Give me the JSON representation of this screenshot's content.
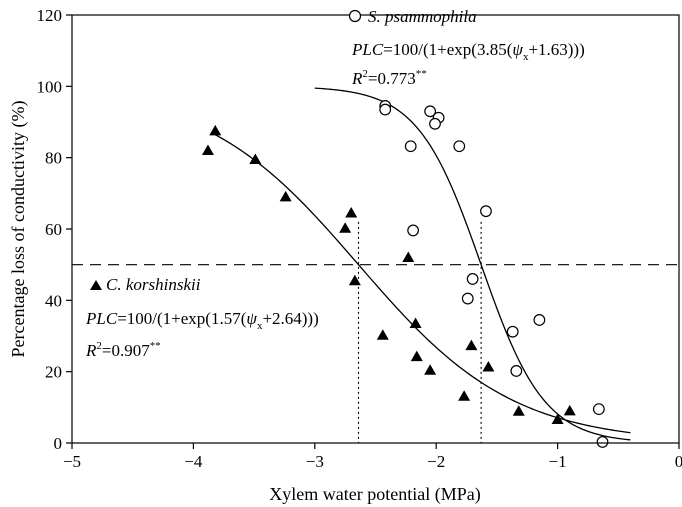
{
  "chart_data": {
    "type": "scatter",
    "xlabel": "Xylem water potential (MPa)",
    "ylabel": "Percentage loss of conductivity (%)",
    "xlim": [
      -5,
      0
    ],
    "ylim": [
      0,
      120
    ],
    "xticks": [
      "−5",
      "−4",
      "−3",
      "−2",
      "−1",
      "0"
    ],
    "yticks": [
      "0",
      "20",
      "40",
      "60",
      "80",
      "100",
      "120"
    ],
    "grid": false,
    "reference_line": {
      "y": 50,
      "style": "dashed"
    },
    "p50_markers": [
      -2.64,
      -1.63
    ],
    "series": [
      {
        "name": "S. psammophila",
        "marker": "open-circle",
        "equation": {
          "lhs": "PLC",
          "a": "=100/(1+exp(3.85(",
          "psi": "ψ",
          "sub": "x",
          "b": "+1.63)))"
        },
        "r2": {
          "label": "R",
          "sup": "2",
          "value": "=0.773",
          "sig": "**"
        },
        "fit": {
          "a": 3.85,
          "b": 1.63,
          "x_range": [
            -3.0,
            -0.4
          ]
        },
        "points": [
          {
            "x": -2.42,
            "y": 94.5
          },
          {
            "x": -2.42,
            "y": 93.5
          },
          {
            "x": -2.05,
            "y": 93
          },
          {
            "x": -1.98,
            "y": 91.2
          },
          {
            "x": -2.01,
            "y": 89.5
          },
          {
            "x": -2.21,
            "y": 83.2
          },
          {
            "x": -1.81,
            "y": 83.2
          },
          {
            "x": -2.19,
            "y": 59.6
          },
          {
            "x": -1.59,
            "y": 65
          },
          {
            "x": -1.7,
            "y": 46
          },
          {
            "x": -1.74,
            "y": 40.5
          },
          {
            "x": -1.15,
            "y": 34.5
          },
          {
            "x": -1.37,
            "y": 31.2
          },
          {
            "x": -1.34,
            "y": 20.2
          },
          {
            "x": -0.66,
            "y": 9.5
          },
          {
            "x": -0.63,
            "y": 0.3
          }
        ]
      },
      {
        "name": "C. korshinskii",
        "marker": "filled-triangle",
        "equation": {
          "lhs": "PLC",
          "a": "=100/(1+exp(1.57(",
          "psi": "ψ",
          "sub": "x",
          "b": "+2.64)))"
        },
        "r2": {
          "label": "R",
          "sup": "2",
          "value": "=0.907",
          "sig": "**"
        },
        "fit": {
          "a": 1.57,
          "b": 2.64,
          "x_range": [
            -3.85,
            -0.4
          ]
        },
        "points": [
          {
            "x": -3.82,
            "y": 87.5
          },
          {
            "x": -3.88,
            "y": 82
          },
          {
            "x": -3.49,
            "y": 79.5
          },
          {
            "x": -3.24,
            "y": 69
          },
          {
            "x": -2.7,
            "y": 64.5
          },
          {
            "x": -2.75,
            "y": 60.2
          },
          {
            "x": -2.67,
            "y": 45.5
          },
          {
            "x": -2.23,
            "y": 52
          },
          {
            "x": -2.17,
            "y": 33.5
          },
          {
            "x": -2.44,
            "y": 30.2
          },
          {
            "x": -2.16,
            "y": 24.2
          },
          {
            "x": -2.05,
            "y": 20.4
          },
          {
            "x": -1.71,
            "y": 27.3
          },
          {
            "x": -1.57,
            "y": 21.3
          },
          {
            "x": -1.77,
            "y": 13.1
          },
          {
            "x": -1.32,
            "y": 8.9
          },
          {
            "x": -1.0,
            "y": 6.6
          },
          {
            "x": -0.9,
            "y": 9
          }
        ]
      }
    ]
  }
}
